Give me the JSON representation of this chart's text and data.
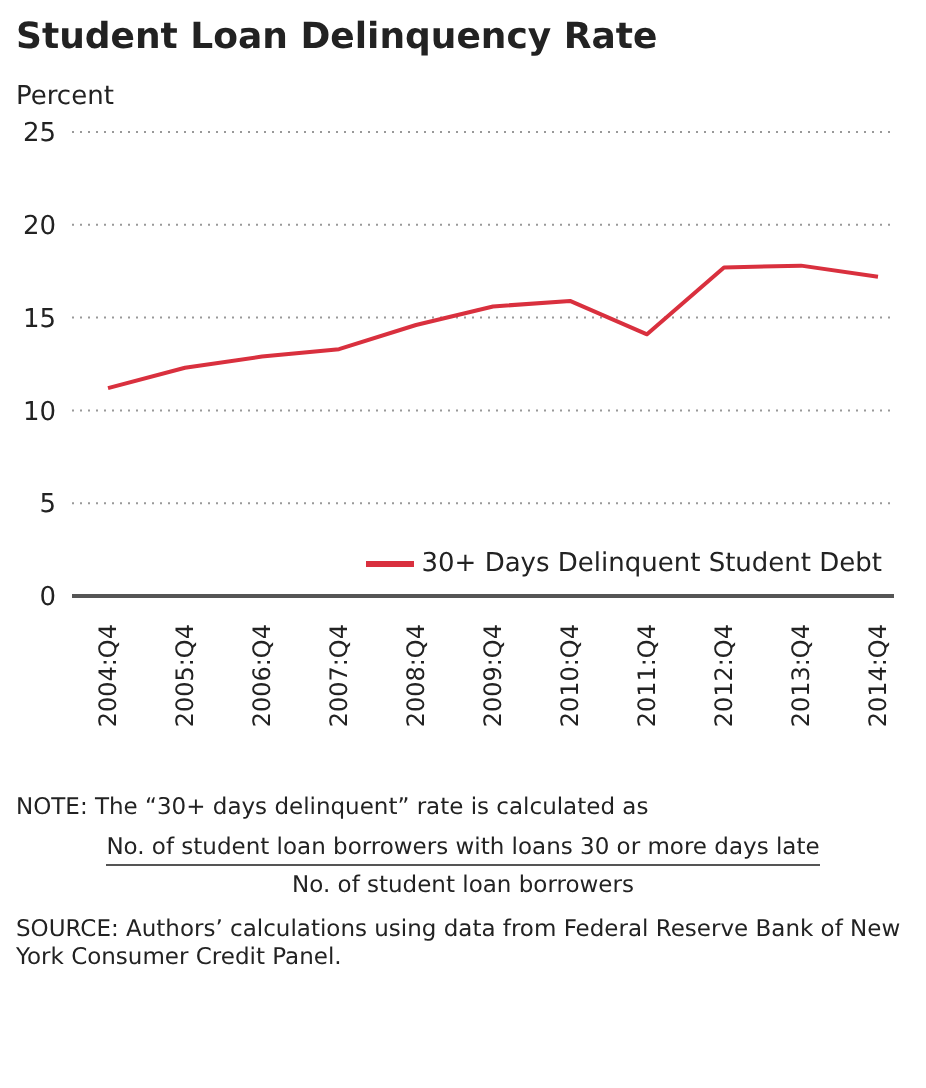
{
  "chart_data": {
    "type": "line",
    "title": "Student Loan Delinquency Rate",
    "ylabel": "Percent",
    "categories": [
      "2004:Q4",
      "2005:Q4",
      "2006:Q4",
      "2007:Q4",
      "2008:Q4",
      "2009:Q4",
      "2010:Q4",
      "2011:Q4",
      "2012:Q4",
      "2013:Q4",
      "2014:Q4"
    ],
    "series": [
      {
        "name": "30+ Days Delinquent Student Debt",
        "color": "#d9303e",
        "values": [
          11.2,
          12.3,
          12.9,
          13.3,
          14.6,
          15.6,
          15.9,
          14.1,
          17.7,
          17.8,
          17.2
        ]
      }
    ],
    "ylim": [
      0,
      25
    ],
    "yticks": [
      0,
      5,
      10,
      15,
      20,
      25
    ],
    "grid": "y",
    "legend": "bottom right",
    "marker": "none",
    "line_style": "solid",
    "annotations": [
      "NOTE: The “30+ days delinquent” rate is calculated as",
      "No. of student loan borrowers with loans 30 or more days late",
      "No. of student loan borrowers",
      "SOURCE: Authors’ calculations using data from Federal Reserve Bank of New York Consumer Credit Panel."
    ]
  }
}
